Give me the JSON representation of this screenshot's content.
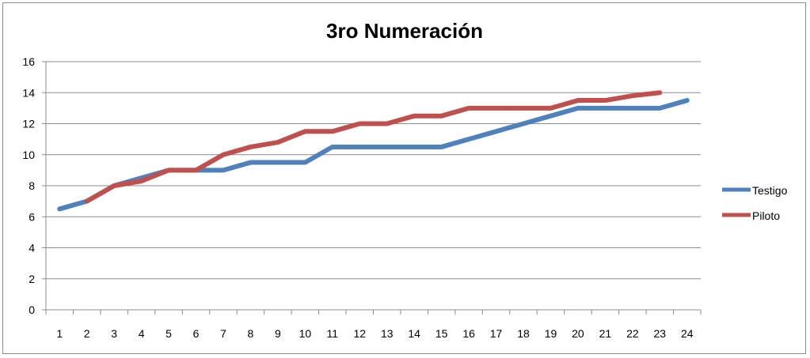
{
  "chart_data": {
    "type": "line",
    "title": "3ro Numeración",
    "xlabel": "",
    "ylabel": "",
    "categories": [
      "1",
      "2",
      "3",
      "4",
      "5",
      "6",
      "7",
      "8",
      "9",
      "10",
      "11",
      "12",
      "13",
      "14",
      "15",
      "16",
      "17",
      "18",
      "19",
      "20",
      "21",
      "22",
      "23",
      "24"
    ],
    "ylim": [
      0,
      16
    ],
    "yticks": [
      0,
      2,
      4,
      6,
      8,
      10,
      12,
      14,
      16
    ],
    "grid": "horizontal",
    "legend_position": "right",
    "series": [
      {
        "name": "Testigo",
        "color": "#4f81bd",
        "values": [
          6.5,
          7,
          8,
          8.5,
          9,
          9,
          9,
          9.5,
          9.5,
          9.5,
          10.5,
          10.5,
          10.5,
          10.5,
          10.5,
          11,
          11.5,
          12,
          12.5,
          13,
          13,
          13,
          13,
          13.5
        ]
      },
      {
        "name": "Piloto",
        "color": "#c0504d",
        "values": [
          null,
          7,
          8,
          8.3,
          9,
          9,
          10,
          10.5,
          10.8,
          11.5,
          11.5,
          12,
          12,
          12.5,
          12.5,
          13,
          13,
          13,
          13,
          13.5,
          13.5,
          13.8,
          14,
          null
        ]
      }
    ]
  }
}
